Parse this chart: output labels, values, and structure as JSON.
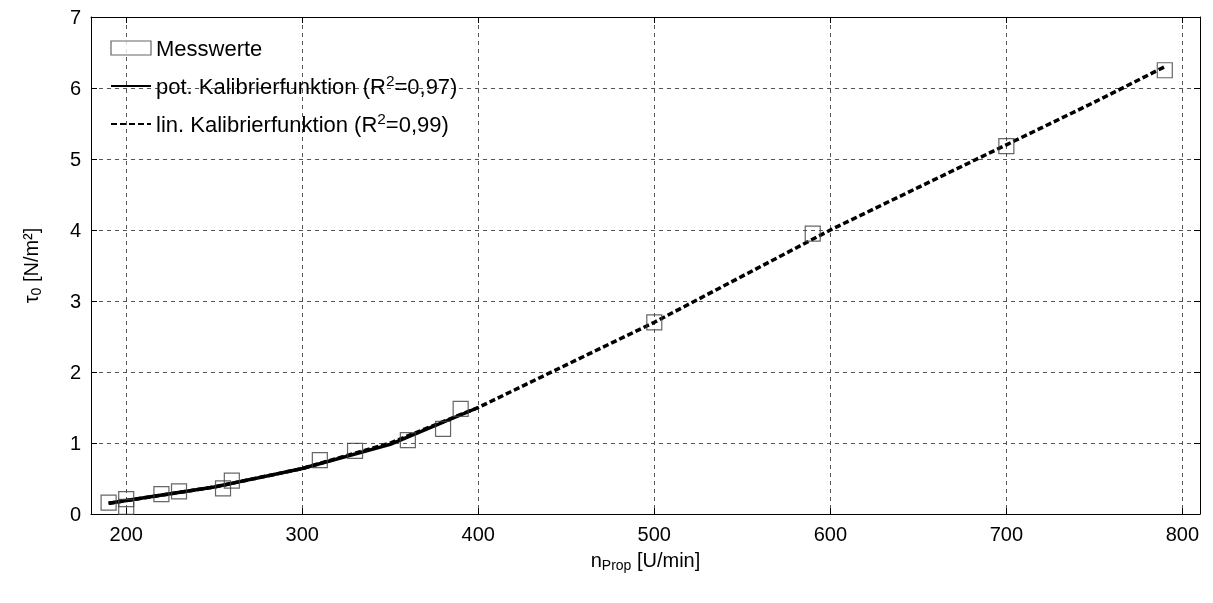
{
  "chart_data": {
    "type": "scatter",
    "xlabel": "n$_{Prop}$ [U/min]",
    "ylabel": "τ$_{0}$ [N/m²]",
    "xlim": [
      180,
      810
    ],
    "xticks": [
      200,
      300,
      400,
      500,
      600,
      700,
      800
    ],
    "ylim": [
      0,
      7
    ],
    "yticks": [
      0,
      1,
      2,
      3,
      4,
      5,
      6,
      7
    ],
    "grid": true,
    "legend": "top left",
    "series": [
      {
        "name": "Messwerte",
        "marker": "square",
        "color": "#404040",
        "x": [
          190,
          200,
          200,
          220,
          230,
          255,
          260,
          310,
          330,
          360,
          380,
          390,
          500,
          590,
          700,
          790
        ],
        "values": [
          0.16,
          0.21,
          0.1,
          0.28,
          0.32,
          0.36,
          0.47,
          0.76,
          0.89,
          1.04,
          1.2,
          1.48,
          2.7,
          3.95,
          5.18,
          6.25
        ]
      },
      {
        "name": "pot. Kalibrierfunktion (R$^{2}$=0,97)",
        "type": "line",
        "marker": "none",
        "line_style": "solid",
        "color": "#000000",
        "x": [
          190,
          200,
          250,
          300,
          350,
          400
        ],
        "values": [
          0.15,
          0.19,
          0.38,
          0.64,
          0.98,
          1.5
        ]
      },
      {
        "name": "lin. Kalibrierfunktion (R$^{2}$=0,99)",
        "type": "line",
        "marker": "none",
        "line_style": "dashed",
        "color": "#000000",
        "x": [
          190,
          250,
          300,
          350,
          400,
          450,
          500,
          550,
          600,
          650,
          700,
          750,
          790
        ],
        "values": [
          0.15,
          0.38,
          0.64,
          1.0,
          1.5,
          2.1,
          2.7,
          3.35,
          4.0,
          4.6,
          5.2,
          5.8,
          6.3
        ]
      }
    ]
  }
}
